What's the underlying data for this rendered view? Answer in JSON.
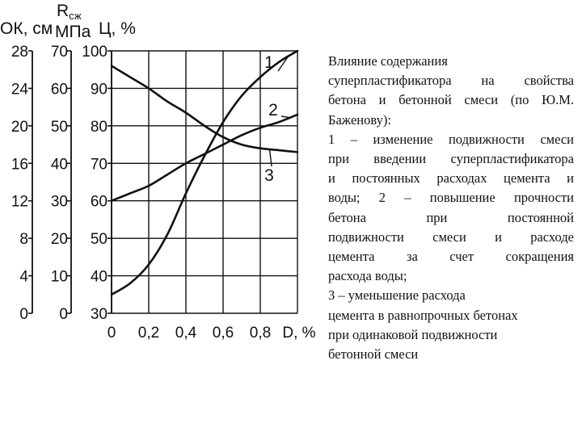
{
  "chart_data": {
    "type": "line",
    "title": "",
    "axis_headers": {
      "ok": "ОК, см",
      "rszh_main": "R",
      "rszh_sub": "сж",
      "mpa": "МПа",
      "c": "Ц, %",
      "d": "D, %"
    },
    "xlabel": "D, %",
    "x_ticks": [
      "0",
      "0,2",
      "0,4",
      "0,6",
      "0,8"
    ],
    "xlim": [
      0,
      1.0
    ],
    "y_axes": [
      {
        "name": "ОК, см",
        "ticks": [
          "28",
          "24",
          "20",
          "16",
          "12",
          "8",
          "4",
          "0"
        ],
        "range": [
          0,
          28
        ]
      },
      {
        "name": "Rсж МПа",
        "ticks": [
          "70",
          "60",
          "50",
          "40",
          "30",
          "20",
          "10",
          "0"
        ],
        "range": [
          0,
          70
        ]
      },
      {
        "name": "Ц, %",
        "ticks": [
          "100",
          "90",
          "80",
          "70",
          "60",
          "50",
          "40",
          "30"
        ],
        "range": [
          30,
          100
        ]
      }
    ],
    "grid": true,
    "series": [
      {
        "name": "1",
        "x": [
          0,
          0.1,
          0.2,
          0.3,
          0.4,
          0.5,
          0.6,
          0.7,
          0.8,
          0.9,
          1.0
        ],
        "y": [
          35,
          38,
          43,
          51,
          62,
          72,
          81,
          88,
          93,
          97,
          100
        ]
      },
      {
        "name": "2",
        "x": [
          0,
          0.1,
          0.2,
          0.3,
          0.4,
          0.5,
          0.6,
          0.7,
          0.8,
          0.9,
          1.0
        ],
        "y": [
          60,
          62,
          64,
          67,
          70,
          72.5,
          75,
          77.5,
          79.5,
          81,
          83
        ]
      },
      {
        "name": "3",
        "x": [
          0,
          0.1,
          0.2,
          0.3,
          0.4,
          0.5,
          0.6,
          0.7,
          0.8,
          0.9,
          1.0
        ],
        "y": [
          96,
          93,
          90,
          86.5,
          83.5,
          80,
          77,
          75,
          74,
          73.5,
          73
        ]
      }
    ]
  },
  "caption": {
    "lines": [
      "Влияние содержания",
      "суперпластификатора на свойства",
      "бетона и бетонной смеси (по Ю.М.",
      "Баженову):",
      "1 – изменение подвижности смеси",
      "при введении суперпластификатора",
      "и постоянных расходах цемента и",
      "воды; 2 – повышение прочности",
      "бетона при постоянной",
      "подвижности смеси и расходе",
      "цемента за счет сокращения",
      "расхода воды;",
      "3 – уменьшение расхода",
      "цемента в равнопрочных бетонах",
      "при одинаковой подвижности",
      "бетонной смеси"
    ]
  }
}
